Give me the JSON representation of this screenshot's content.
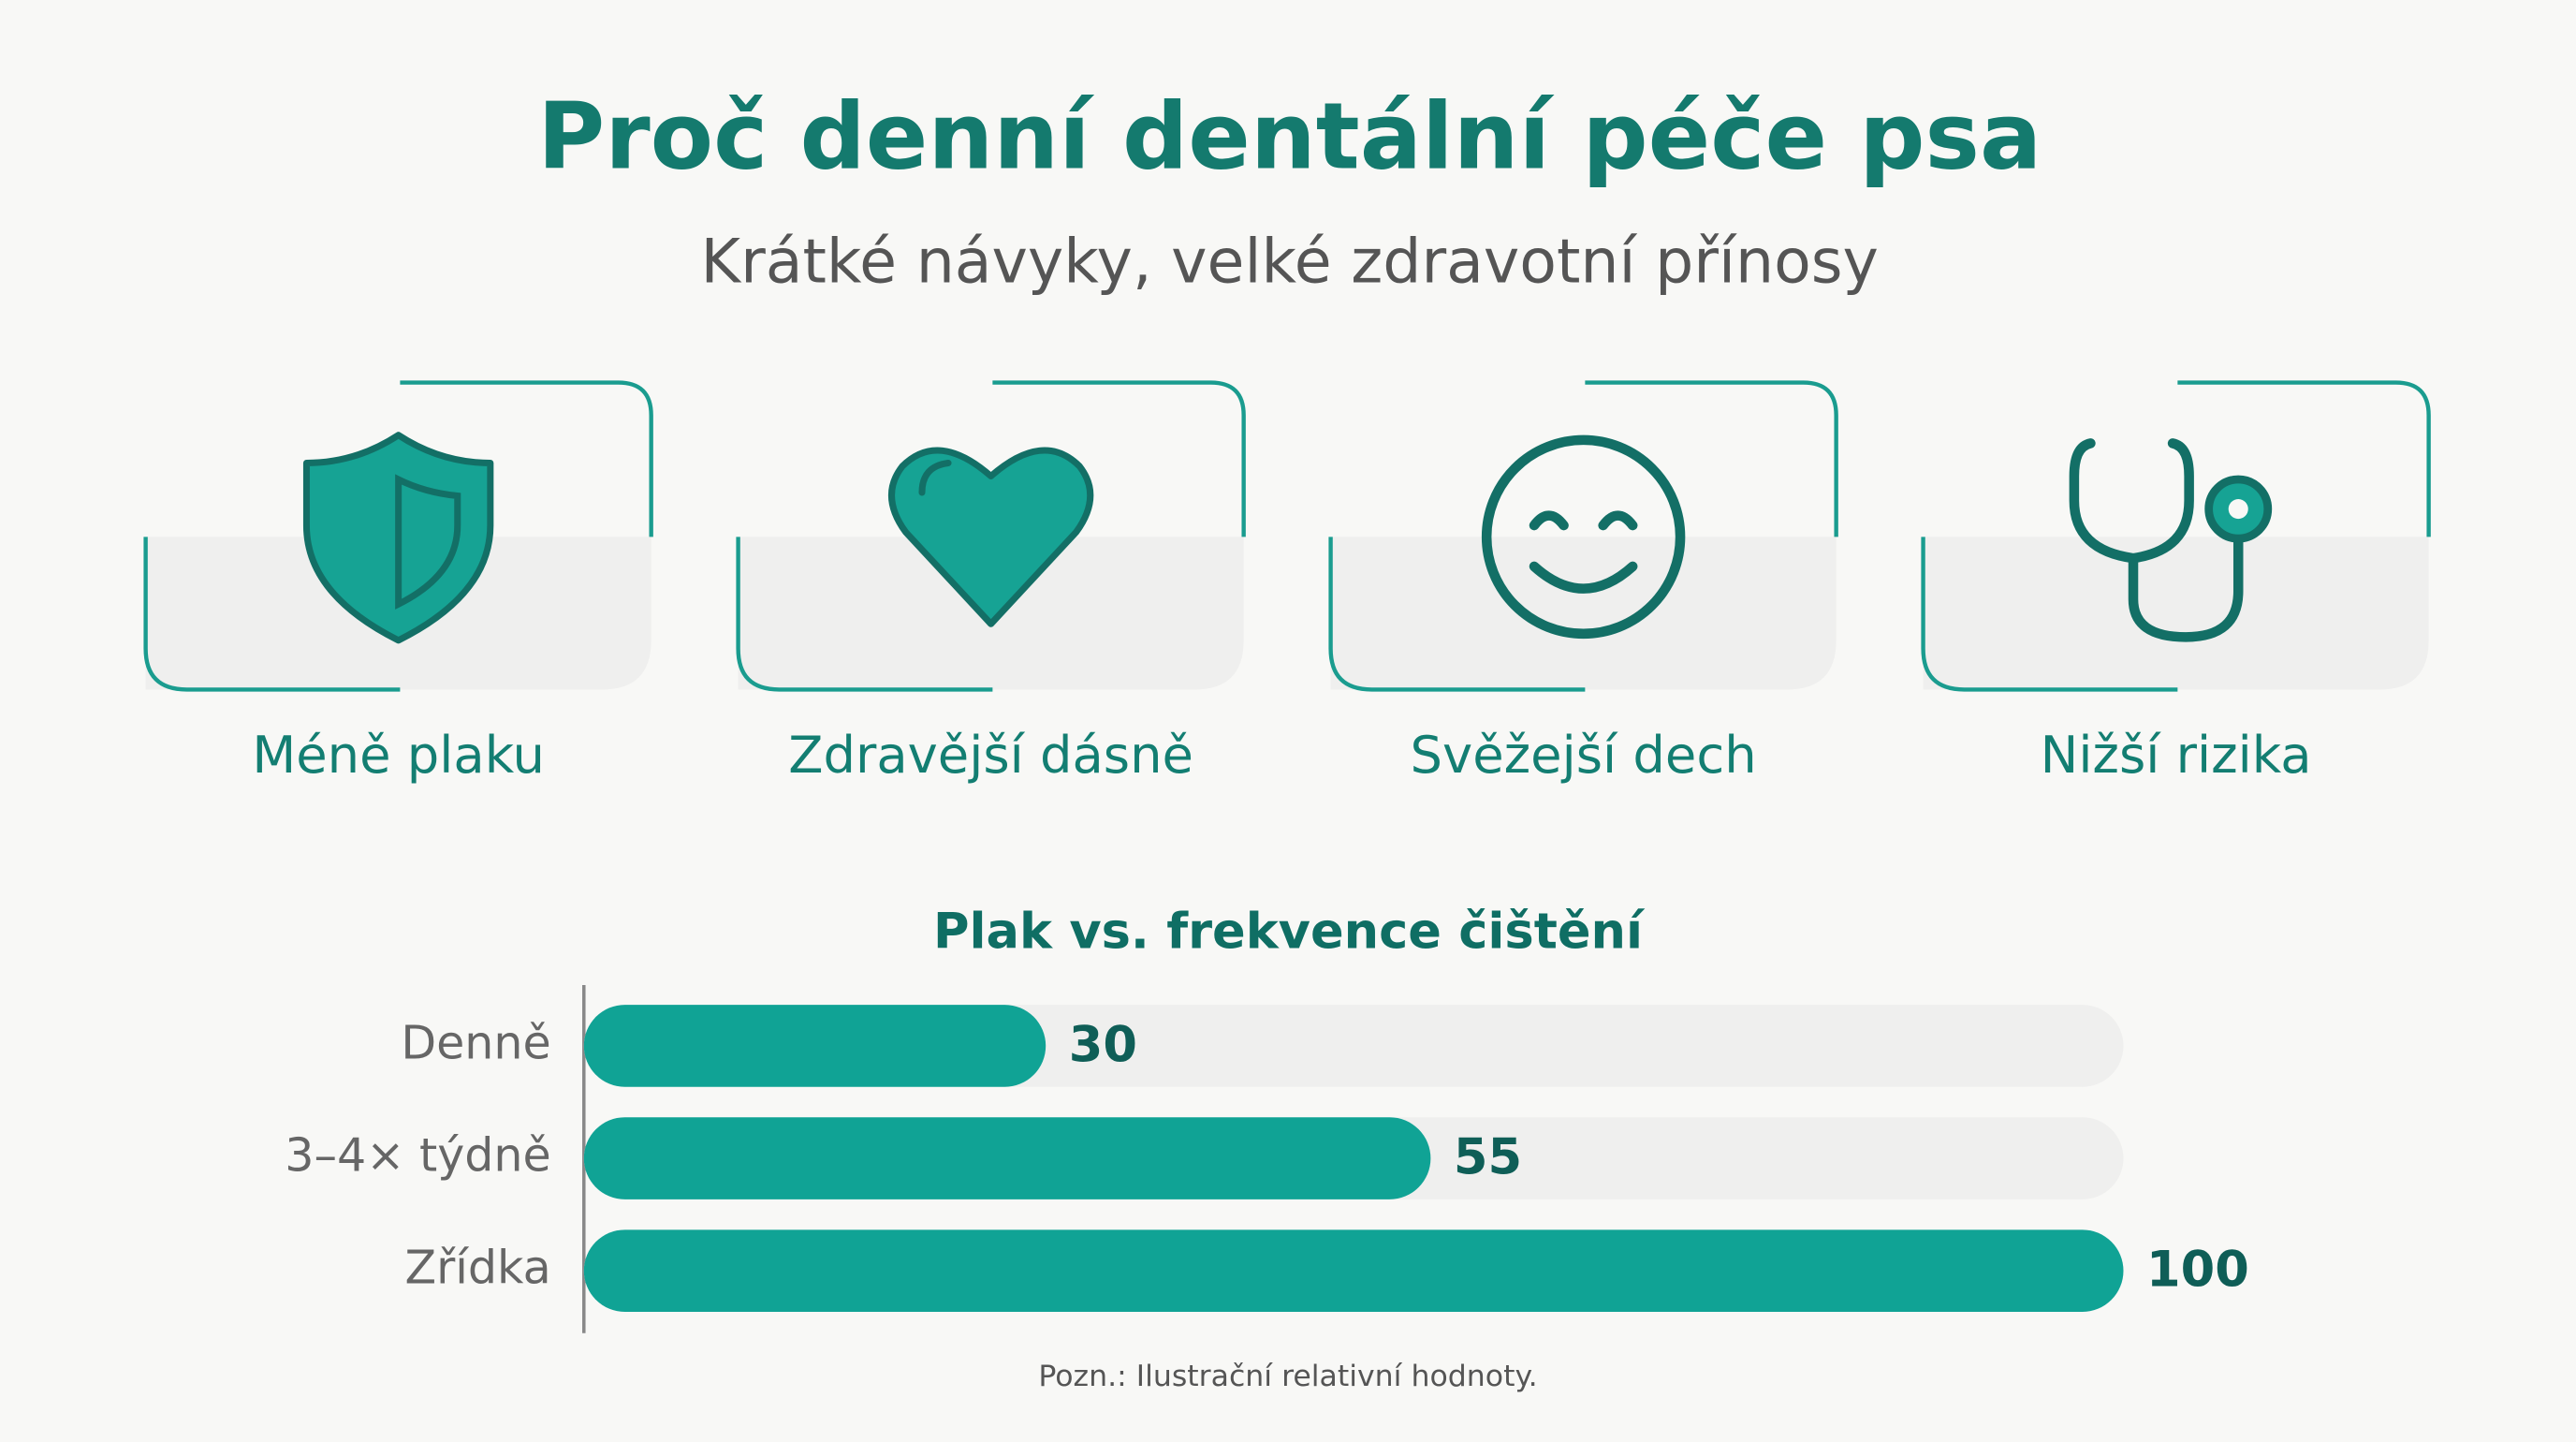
{
  "header": {
    "title": "Proč denní dentální péče psa",
    "subtitle": "Krátké návyky, velké zdravotní přínosy"
  },
  "cards": [
    {
      "label": "Méně plaku"
    },
    {
      "label": "Zdravější dásně"
    },
    {
      "label": "Svěžejší dech"
    },
    {
      "label": "Nižší rizika"
    }
  ],
  "chart_data": {
    "type": "bar",
    "orientation": "horizontal",
    "title": "Plak vs. frekvence čištění",
    "categories": [
      "Denně",
      "3–4× týdně",
      "Zřídka"
    ],
    "values": [
      30,
      55,
      100
    ],
    "color": "#10a395",
    "xlim": [
      0,
      100
    ]
  },
  "footnote": "Pozn.: Ilustrační relativní hodnoty."
}
